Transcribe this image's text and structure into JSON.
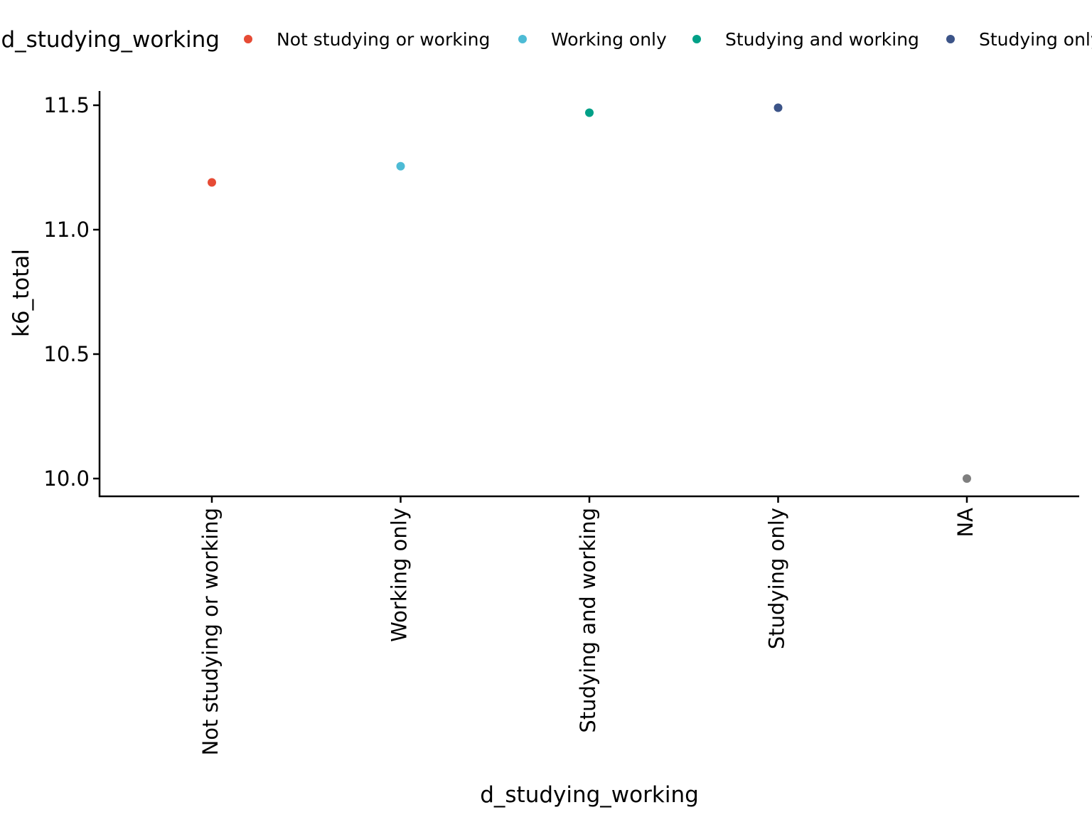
{
  "chart_data": {
    "type": "scatter",
    "title": "",
    "xlabel": "d_studying_working",
    "ylabel": "k6_total",
    "categories": [
      "Not studying or working",
      "Working only",
      "Studying and working",
      "Studying only",
      "NA"
    ],
    "values": [
      11.19,
      11.255,
      11.47,
      11.49,
      10.0
    ],
    "point_colors": [
      "#E64B35",
      "#4DBBD5",
      "#00A087",
      "#3C5488",
      "#7F7F7F"
    ],
    "ylim": [
      9.93,
      11.57
    ],
    "yticks": [
      10.0,
      10.5,
      11.0,
      11.5
    ],
    "ytick_labels": [
      "10.0",
      "10.5",
      "11.0",
      "11.5"
    ],
    "grid": false,
    "legend": {
      "title": "d_studying_working",
      "placement": "top",
      "entries": [
        {
          "label": "Not studying or working",
          "color": "#E64B35"
        },
        {
          "label": "Working only",
          "color": "#4DBBD5"
        },
        {
          "label": "Studying and working",
          "color": "#00A087"
        },
        {
          "label": "Studying only",
          "color": "#3C5488"
        }
      ]
    }
  }
}
